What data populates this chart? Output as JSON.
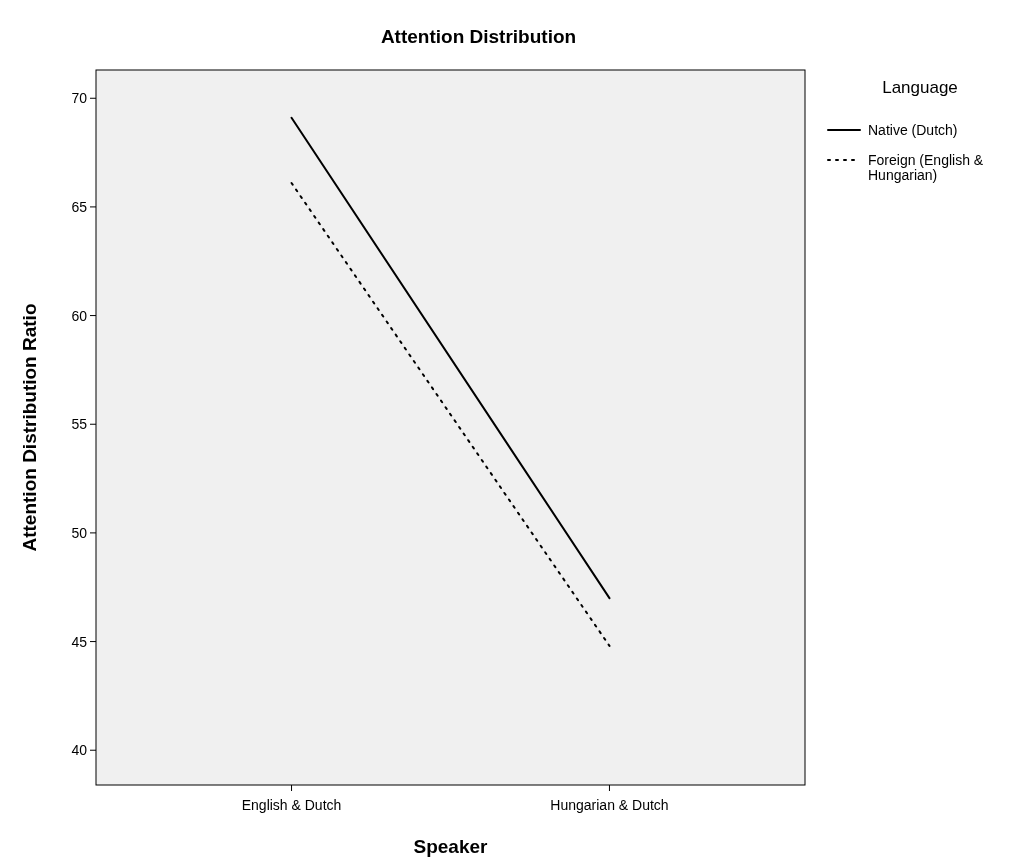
{
  "chart_data": {
    "type": "line",
    "title": "Attention Distribution",
    "xlabel": "Speaker",
    "ylabel": "Attention Distribution Ratio",
    "legend_title": "Language",
    "categories": [
      "English & Dutch",
      "Hungarian & Dutch"
    ],
    "series": [
      {
        "name": "Native (Dutch)",
        "color": "#000000",
        "line_style": "solid",
        "values": [
          69.1,
          47.0
        ]
      },
      {
        "name": "Foreign (English & Hungarian)",
        "color": "#000000",
        "line_style": "dotted",
        "values": [
          66.1,
          44.8
        ]
      }
    ],
    "ylim": [
      38.4,
      71.3
    ],
    "yticks": [
      40,
      45,
      50,
      55,
      60,
      65,
      70
    ],
    "grid": false,
    "legend": "right",
    "marker": "none"
  }
}
